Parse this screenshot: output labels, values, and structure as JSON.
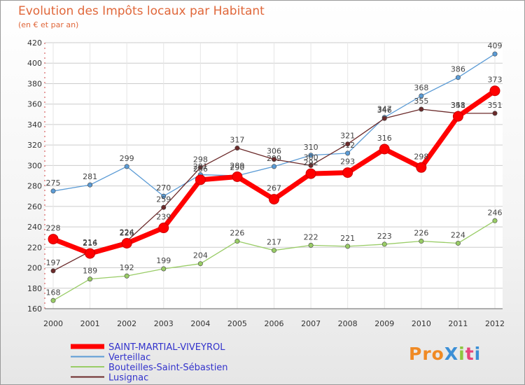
{
  "title": "Evolution des Impôts locaux par Habitant",
  "subtitle": "(en € et par an)",
  "logo_text": "ProXiti",
  "chart_data": {
    "type": "line",
    "title": "Evolution des Impôts locaux par Habitant",
    "ylabel": "(en € et par an)",
    "xlabel": "",
    "x": [
      "2000",
      "2001",
      "2002",
      "2003",
      "2004",
      "2005",
      "2006",
      "2007",
      "2008",
      "2009",
      "2010",
      "2011",
      "2012"
    ],
    "ylim": [
      160,
      420
    ],
    "yticks": [
      160,
      180,
      200,
      220,
      240,
      260,
      280,
      300,
      320,
      340,
      360,
      380,
      400,
      420
    ],
    "grid": true,
    "legend_position": "bottom-left",
    "series": [
      {
        "name": "SAINT-MARTIAL-VIVEYROL",
        "color": "#ff0000",
        "values": [
          228,
          214,
          224,
          239,
          286,
          289,
          267,
          292,
          293,
          316,
          298,
          348,
          373
        ]
      },
      {
        "name": "Verteillac",
        "color": "#5b9bd5",
        "values": [
          275,
          281,
          299,
          270,
          291,
          290,
          299,
          310,
          312,
          347,
          368,
          386,
          409
        ]
      },
      {
        "name": "Bouteilles-Saint-Sébastien",
        "color": "#99cc66",
        "values": [
          168,
          189,
          192,
          199,
          204,
          226,
          217,
          222,
          221,
          223,
          226,
          224,
          246
        ]
      },
      {
        "name": "Lusignac",
        "color": "#6b2a2a",
        "values": [
          197,
          216,
          226,
          259,
          298,
          317,
          306,
          300,
          321,
          346,
          355,
          351,
          351
        ]
      }
    ]
  }
}
